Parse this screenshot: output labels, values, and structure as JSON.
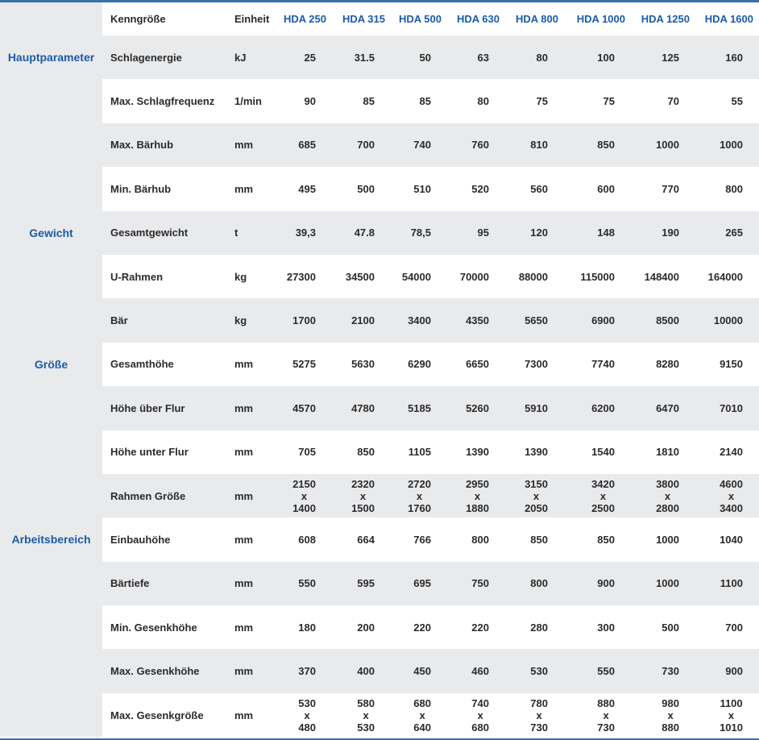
{
  "header": {
    "parameter_label": "Kenngröße",
    "unit_label": "Einheit",
    "models": [
      "HDA 250",
      "HDA 315",
      "HDA 500",
      "HDA 630",
      "HDA 800",
      "HDA 1000",
      "HDA 1250",
      "HDA 1600"
    ]
  },
  "colors": {
    "accent": "#1a5ca8",
    "row_alt": "#e9eaec",
    "border": "#3a6fb0"
  },
  "rows": [
    {
      "category": "Hauptparameter",
      "name": "Schlagenergie",
      "unit": "kJ",
      "values": [
        "25",
        "31.5",
        "50",
        "63",
        "80",
        "100",
        "125",
        "160"
      ]
    },
    {
      "category": "",
      "name": "Max. Schlagfrequenz",
      "unit": "1/min",
      "values": [
        "90",
        "85",
        "85",
        "80",
        "75",
        "75",
        "70",
        "55"
      ]
    },
    {
      "category": "",
      "name": "Max. Bärhub",
      "unit": "mm",
      "values": [
        "685",
        "700",
        "740",
        "760",
        "810",
        "850",
        "1000",
        "1000"
      ]
    },
    {
      "category": "",
      "name": "Min. Bärhub",
      "unit": "mm",
      "values": [
        "495",
        "500",
        "510",
        "520",
        "560",
        "600",
        "770",
        "800"
      ]
    },
    {
      "category": "Gewicht",
      "name": "Gesamtgewicht",
      "unit": "t",
      "values": [
        "39,3",
        "47.8",
        "78,5",
        "95",
        "120",
        "148",
        "190",
        "265"
      ]
    },
    {
      "category": "",
      "name": "U-Rahmen",
      "unit": "kg",
      "values": [
        "27300",
        "34500",
        "54000",
        "70000",
        "88000",
        "115000",
        "148400",
        "164000"
      ]
    },
    {
      "category": "",
      "name": "Bär",
      "unit": "kg",
      "values": [
        "1700",
        "2100",
        "3400",
        "4350",
        "5650",
        "6900",
        "8500",
        "10000"
      ]
    },
    {
      "category": "Größe",
      "name": "Gesamthöhe",
      "unit": "mm",
      "values": [
        "5275",
        "5630",
        "6290",
        "6650",
        "7300",
        "7740",
        "8280",
        "9150"
      ]
    },
    {
      "category": "",
      "name": "Höhe über Flur",
      "unit": "mm",
      "values": [
        "4570",
        "4780",
        "5185",
        "5260",
        "5910",
        "6200",
        "6470",
        "7010"
      ]
    },
    {
      "category": "",
      "name": "Höhe unter Flur",
      "unit": "mm",
      "values": [
        "705",
        "850",
        "1105",
        "1390",
        "1390",
        "1540",
        "1810",
        "2140"
      ]
    },
    {
      "category": "",
      "name": "Rahmen Größe",
      "unit": "mm",
      "values": [
        "2150\nx\n1400",
        "2320\nx\n1500",
        "2720\nx\n1760",
        "2950\nx\n1880",
        "3150\nx\n2050",
        "3420\nx\n2500",
        "3800\nx\n2800",
        "4600\nx\n3400"
      ]
    },
    {
      "category": "Arbeitsbereich",
      "name": "Einbauhöhe",
      "unit": "mm",
      "values": [
        "608",
        "664",
        "766",
        "800",
        "850",
        "850",
        "1000",
        "1040"
      ]
    },
    {
      "category": "",
      "name": "Bärtiefe",
      "unit": "mm",
      "values": [
        "550",
        "595",
        "695",
        "750",
        "800",
        "900",
        "1000",
        "1100"
      ]
    },
    {
      "category": "",
      "name": "Min. Gesenkhöhe",
      "unit": "mm",
      "values": [
        "180",
        "200",
        "220",
        "220",
        "280",
        "300",
        "500",
        "700"
      ]
    },
    {
      "category": "",
      "name": "Max. Gesenkhöhe",
      "unit": "mm",
      "values": [
        "370",
        "400",
        "450",
        "460",
        "530",
        "550",
        "730",
        "900"
      ]
    },
    {
      "category": "",
      "name": "Max. Gesenkgröße",
      "unit": "mm",
      "values": [
        "530\nx\n480",
        "580\nx\n530",
        "680\nx\n640",
        "740\nx\n680",
        "780\nx\n730",
        "880\nx\n730",
        "980\nx\n880",
        "1100\nx\n1010"
      ]
    }
  ]
}
